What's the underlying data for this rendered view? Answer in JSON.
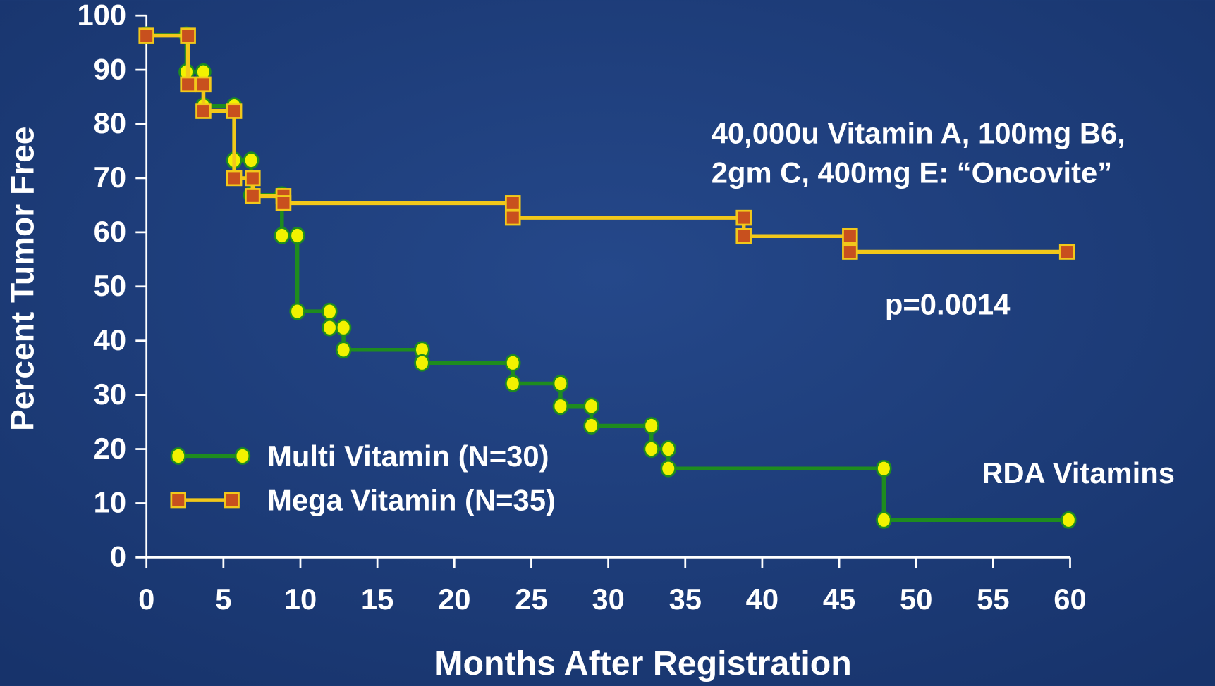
{
  "chart_data": {
    "type": "line",
    "x_label": "Months After Registration",
    "y_label": "Percent Tumor Free",
    "xlim": [
      0,
      60
    ],
    "ylim": [
      0,
      100
    ],
    "xticks": [
      0,
      5,
      10,
      15,
      20,
      25,
      30,
      35,
      40,
      45,
      50,
      55,
      60
    ],
    "yticks": [
      0,
      10,
      20,
      30,
      40,
      50,
      60,
      70,
      80,
      90,
      100
    ],
    "series": [
      {
        "name": "Multi Vitamin (N=30)",
        "color": "#1e8c1e",
        "marker": "circle",
        "marker_color": "#f2f200",
        "x": [
          0,
          2.6,
          2.6,
          3.7,
          3.7,
          5.7,
          5.7,
          6.8,
          6.8,
          8.8,
          8.8,
          9.8,
          9.8,
          11.9,
          11.9,
          12.8,
          12.8,
          17.9,
          17.9,
          23.8,
          23.8,
          26.9,
          26.9,
          28.9,
          28.9,
          32.8,
          32.8,
          33.9,
          33.9,
          47.9,
          47.9,
          59.9
        ],
        "values": [
          96.4,
          96.4,
          89.6,
          89.6,
          83.3,
          83.3,
          73.3,
          73.3,
          66.9,
          66.9,
          59.4,
          59.4,
          45.4,
          45.4,
          42.4,
          42.4,
          38.3,
          38.3,
          35.9,
          35.9,
          32.1,
          32.1,
          27.9,
          27.9,
          24.3,
          24.3,
          20,
          20,
          16.4,
          16.4,
          6.9,
          6.9
        ]
      },
      {
        "name": "Mega Vitamin (N=35)",
        "color": "#f2c81a",
        "marker": "square",
        "marker_color": "#c8501e",
        "x": [
          0,
          2.7,
          2.7,
          3.7,
          3.7,
          5.7,
          5.7,
          6.9,
          6.9,
          8.9,
          8.9,
          23.8,
          23.8,
          38.8,
          38.8,
          45.7,
          45.7,
          59.8
        ],
        "values": [
          96.3,
          96.3,
          87.3,
          87.3,
          82.4,
          82.4,
          70,
          70,
          66.7,
          66.7,
          65.4,
          65.4,
          62.7,
          62.7,
          59.3,
          59.3,
          56.4,
          56.4
        ]
      }
    ],
    "annotations": [
      "40,000u Vitamin A, 100mg B6,",
      "2gm C, 400mg E: “Oncovite”",
      "p=0.0014",
      "RDA Vitamins"
    ],
    "grid": false,
    "legend": "lower left"
  }
}
